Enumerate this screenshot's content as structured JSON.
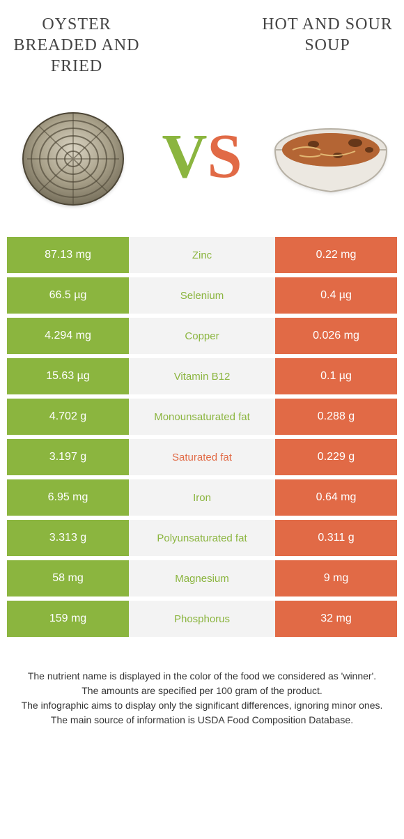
{
  "left": {
    "title": "Oyster breaded and fried",
    "color": "#8bb53f"
  },
  "right": {
    "title": "Hot and sour soup",
    "color": "#e16a46"
  },
  "vs": {
    "v": "V",
    "s": "S"
  },
  "nutrient_label_colors": {
    "left_win": "#8bb53f",
    "right_win": "#e16a46"
  },
  "rows": [
    {
      "left": "87.13 mg",
      "name": "Zinc",
      "right": "0.22 mg",
      "winner": "left"
    },
    {
      "left": "66.5 µg",
      "name": "Selenium",
      "right": "0.4 µg",
      "winner": "left"
    },
    {
      "left": "4.294 mg",
      "name": "Copper",
      "right": "0.026 mg",
      "winner": "left"
    },
    {
      "left": "15.63 µg",
      "name": "Vitamin B12",
      "right": "0.1 µg",
      "winner": "left"
    },
    {
      "left": "4.702 g",
      "name": "Monounsaturated fat",
      "right": "0.288 g",
      "winner": "left"
    },
    {
      "left": "3.197 g",
      "name": "Saturated fat",
      "right": "0.229 g",
      "winner": "right"
    },
    {
      "left": "6.95 mg",
      "name": "Iron",
      "right": "0.64 mg",
      "winner": "left"
    },
    {
      "left": "3.313 g",
      "name": "Polyunsaturated fat",
      "right": "0.311 g",
      "winner": "left"
    },
    {
      "left": "58 mg",
      "name": "Magnesium",
      "right": "9 mg",
      "winner": "left"
    },
    {
      "left": "159 mg",
      "name": "Phosphorus",
      "right": "32 mg",
      "winner": "left"
    }
  ],
  "footer": [
    "The nutrient name is displayed in the color of the food we considered as 'winner'.",
    "The amounts are specified per 100 gram of the product.",
    "The infographic aims to display only the significant differences, ignoring minor ones.",
    "The main source of information is USDA Food Composition Database."
  ]
}
